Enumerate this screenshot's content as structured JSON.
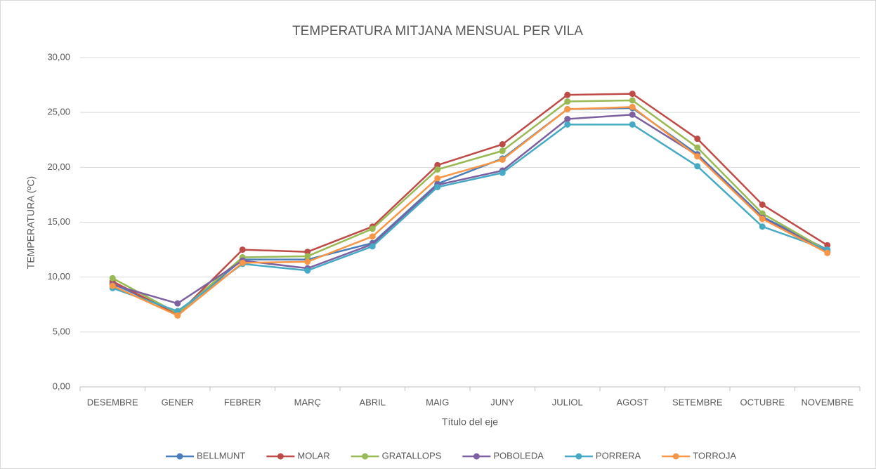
{
  "chart_data": {
    "type": "line",
    "title": "TEMPERATURA MITJANA MENSUAL PER VILA",
    "x_label": "Título del eje",
    "y_label": "TEMPERATURA (ºC)",
    "categories": [
      "DESEMBRE",
      "GENER",
      "FEBRER",
      "MARÇ",
      "ABRIL",
      "MAIG",
      "JUNY",
      "JULIOL",
      "AGOST",
      "SETEMBRE",
      "OCTUBRE",
      "NOVEMBRE"
    ],
    "series": [
      {
        "name": "BELLMUNT",
        "color": "#4a7ebb",
        "values": [
          9.4,
          6.7,
          11.6,
          11.6,
          13.1,
          18.5,
          20.8,
          25.3,
          25.4,
          21.2,
          15.5,
          12.5
        ]
      },
      {
        "name": "MOLAR",
        "color": "#be4b48",
        "values": [
          9.6,
          6.6,
          12.5,
          12.3,
          14.6,
          20.2,
          22.1,
          26.6,
          26.7,
          22.6,
          16.6,
          12.9
        ]
      },
      {
        "name": "GRATALLOPS",
        "color": "#98b954",
        "values": [
          9.9,
          6.7,
          11.8,
          11.9,
          14.4,
          19.8,
          21.5,
          26.0,
          26.1,
          21.8,
          15.8,
          12.4
        ]
      },
      {
        "name": "POBOLEDA",
        "color": "#7d60a0",
        "values": [
          9.3,
          7.6,
          11.5,
          10.8,
          13.0,
          18.4,
          19.7,
          24.4,
          24.8,
          21.1,
          15.4,
          12.3
        ]
      },
      {
        "name": "PORRERA",
        "color": "#46aac5",
        "values": [
          9.0,
          6.9,
          11.2,
          10.6,
          12.8,
          18.2,
          19.5,
          23.9,
          23.9,
          20.1,
          14.6,
          12.5
        ]
      },
      {
        "name": "TORROJA",
        "color": "#f79646",
        "values": [
          9.2,
          6.5,
          11.3,
          11.4,
          13.7,
          19.0,
          20.7,
          25.3,
          25.5,
          21.0,
          15.3,
          12.2
        ]
      }
    ],
    "ylim": [
      0,
      30
    ],
    "yticks": [
      {
        "value": 0,
        "label": "0,00"
      },
      {
        "value": 5,
        "label": "5,00"
      },
      {
        "value": 10,
        "label": "10,00"
      },
      {
        "value": 15,
        "label": "15,00"
      },
      {
        "value": 20,
        "label": "20,00"
      },
      {
        "value": 25,
        "label": "25,00"
      },
      {
        "value": 30,
        "label": "30,00"
      }
    ],
    "grid": true,
    "legend": "bottom"
  }
}
